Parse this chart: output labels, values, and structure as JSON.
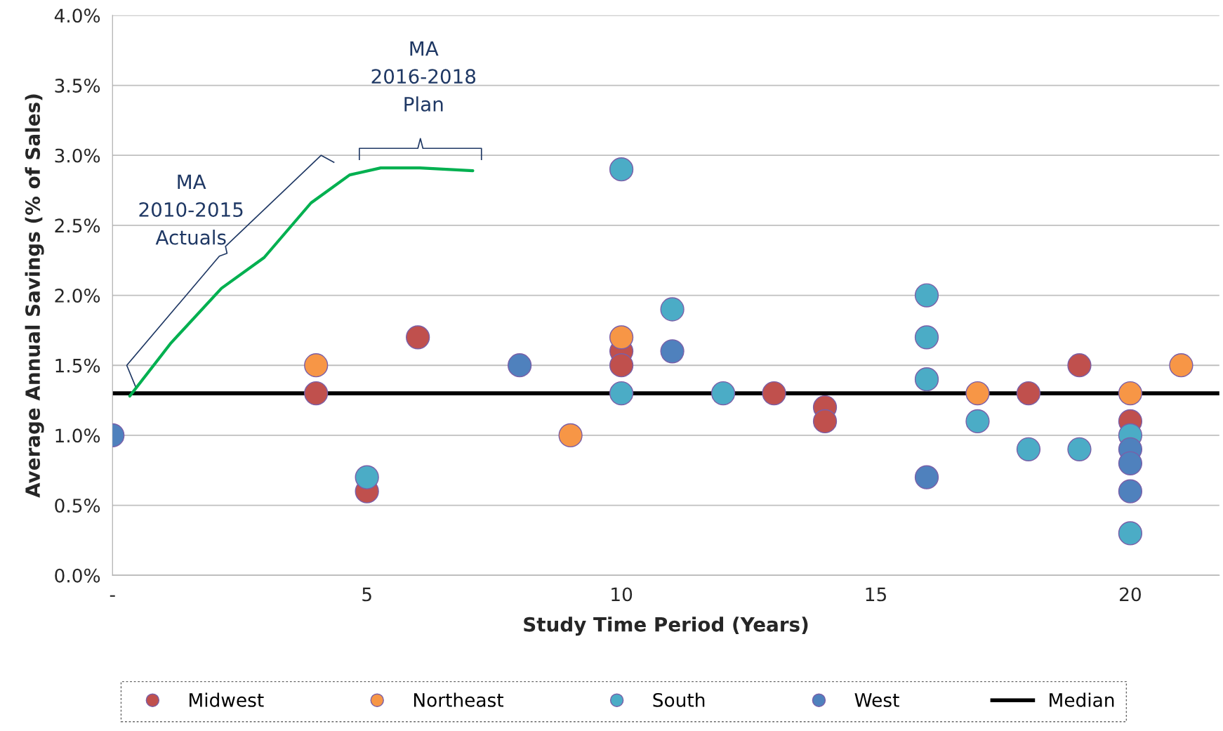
{
  "chart_data": {
    "type": "scatter",
    "xlabel": "Study Time Period (Years)",
    "ylabel": "Average Annual Savings (% of Sales)",
    "xlim": [
      0,
      21.75
    ],
    "xticks": [
      {
        "value": 0,
        "label": "-"
      },
      5,
      10,
      15,
      20
    ],
    "ylim": [
      0,
      4
    ],
    "yticks": [
      {
        "value": 0,
        "label": "0.0%"
      },
      {
        "value": 0.5,
        "label": "0.5%"
      },
      {
        "value": 1,
        "label": "1.0%"
      },
      {
        "value": 1.5,
        "label": "1.5%"
      },
      {
        "value": 2,
        "label": "2.0%"
      },
      {
        "value": 2.5,
        "label": "2.5%"
      },
      {
        "value": 3,
        "label": "3.0%"
      },
      {
        "value": 3.5,
        "label": "3.5%"
      },
      {
        "value": 4,
        "label": "4.0%"
      }
    ],
    "grid": "y",
    "legend": "bottom",
    "marker": "circle",
    "series": [
      {
        "name": "Midwest",
        "color": "#c0504d",
        "x": [
          4,
          5,
          6,
          10,
          10,
          13,
          14,
          14,
          18,
          19,
          20
        ],
        "values": [
          1.3,
          0.6,
          1.7,
          1.6,
          1.5,
          1.3,
          1.2,
          1.1,
          1.3,
          1.5,
          1.1
        ]
      },
      {
        "name": "Northeast",
        "color": "#f79646",
        "x": [
          4,
          9,
          10,
          17,
          20,
          21
        ],
        "values": [
          1.5,
          1.0,
          1.7,
          1.3,
          1.3,
          1.5
        ]
      },
      {
        "name": "South",
        "color": "#4bacc6",
        "x": [
          5,
          10,
          10,
          11,
          12,
          16,
          16,
          16,
          17,
          18,
          19,
          20,
          20
        ],
        "values": [
          0.7,
          2.9,
          1.3,
          1.9,
          1.3,
          2.0,
          1.7,
          1.4,
          1.1,
          0.9,
          0.9,
          1.0,
          0.3
        ]
      },
      {
        "name": "West",
        "color": "#4f81bd",
        "x": [
          0,
          8,
          11,
          16,
          20,
          20,
          20
        ],
        "values": [
          1.0,
          1.5,
          1.6,
          0.7,
          0.9,
          0.8,
          0.6
        ]
      },
      {
        "type": "line",
        "color": "#00b050",
        "marker": "none",
        "x": [
          0.34,
          1.15,
          2.14,
          2.98,
          3.9,
          4.66,
          5.27,
          6.04,
          7.08
        ],
        "values": [
          1.28,
          1.66,
          2.05,
          2.27,
          2.66,
          2.86,
          2.91,
          2.91,
          2.89
        ]
      }
    ],
    "ref_lines": [
      {
        "axis": "y",
        "value": 1.3,
        "label": "Median",
        "color": "#000000"
      }
    ],
    "annotations": [
      "MA\n2010-2015\nActuals",
      "MA\n2016-2018\nPlan"
    ]
  }
}
